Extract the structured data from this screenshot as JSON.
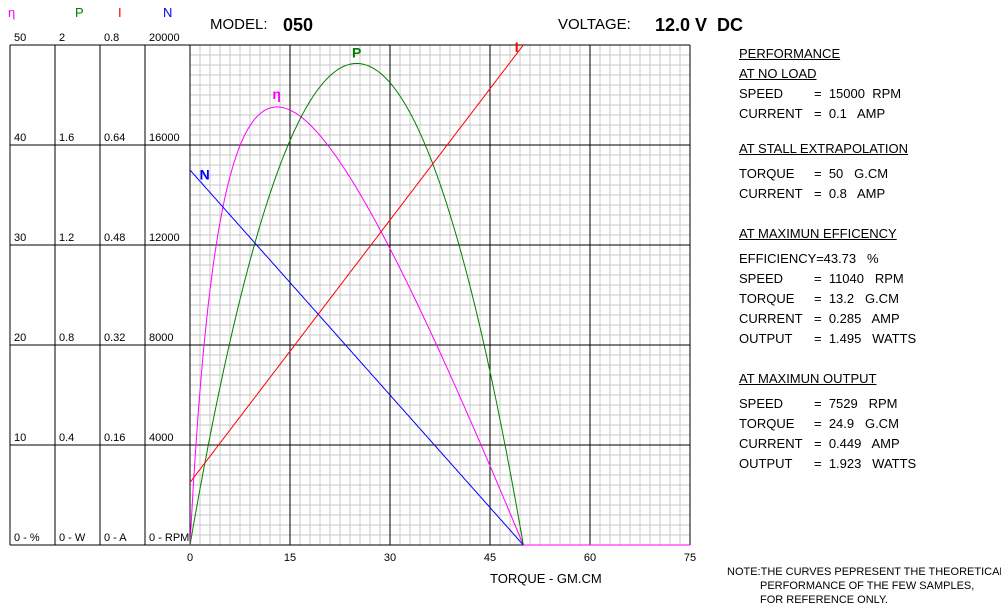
{
  "header": {
    "model_label": "MODEL:",
    "model_value": "050",
    "voltage_label": "VOLTAGE:",
    "voltage_value": "12.0 V  DC"
  },
  "axes": {
    "eff": {
      "symbol": "η",
      "color": "#ff00ff",
      "ticks": [
        "50",
        "40",
        "30",
        "20",
        "10",
        "0 - %"
      ]
    },
    "power": {
      "symbol": "P",
      "color": "#008000",
      "ticks": [
        "2",
        "1.6",
        "1.2",
        "0.8",
        "0.4",
        "0 - W"
      ]
    },
    "current": {
      "symbol": "I",
      "color": "#ff0000",
      "ticks": [
        "0.8",
        "0.64",
        "0.48",
        "0.32",
        "0.16",
        "0 - A"
      ]
    },
    "speed": {
      "symbol": "N",
      "color": "#0000ff",
      "ticks": [
        "20000",
        "16000",
        "12000",
        "8000",
        "4000",
        "0 - RPM"
      ]
    },
    "x_ticks": [
      "0",
      "15",
      "30",
      "45",
      "60",
      "75"
    ],
    "x_label": "TORQUE - GM.CM"
  },
  "performance": {
    "title": "PERFORMANCE",
    "no_load": {
      "title": "AT NO LOAD",
      "rows": [
        {
          "label": "SPEED",
          "value": "=  15000  RPM"
        },
        {
          "label": "CURRENT",
          "value": "=  0.1   AMP"
        }
      ]
    },
    "stall": {
      "title": "AT STALL EXTRAPOLATION",
      "rows": [
        {
          "label": "TORQUE",
          "value": "=  50   G.CM"
        },
        {
          "label": "CURRENT",
          "value": "=  0.8   AMP"
        }
      ]
    },
    "max_eff": {
      "title": "AT MAXIMUN EFFICENCY",
      "rows": [
        {
          "label": "EFFICIENCY=",
          "value": " 43.73   %"
        },
        {
          "label": "SPEED",
          "value": "=  11040   RPM"
        },
        {
          "label": "TORQUE",
          "value": "=  13.2   G.CM"
        },
        {
          "label": "CURRENT",
          "value": "=  0.285   AMP"
        },
        {
          "label": "OUTPUT",
          "value": "=  1.495   WATTS"
        }
      ]
    },
    "max_out": {
      "title": "AT MAXIMUN OUTPUT",
      "rows": [
        {
          "label": "SPEED",
          "value": "=  7529   RPM"
        },
        {
          "label": "TORQUE",
          "value": "=  24.9   G.CM"
        },
        {
          "label": "CURRENT",
          "value": "=  0.449   AMP"
        },
        {
          "label": "OUTPUT",
          "value": "=  1.923   WATTS"
        }
      ]
    }
  },
  "note": {
    "line1": "NOTE:THE CURVES PEPRESENT THE THEORETICAL",
    "line2": "PERFORMANCE OF THE FEW SAMPLES,",
    "line3": "FOR REFERENCE ONLY."
  },
  "chart_data": {
    "type": "line",
    "x": [
      0,
      50
    ],
    "xlabel": "TORQUE - GM.CM",
    "xlim": [
      0,
      75
    ],
    "grid": true,
    "stall_torque": 50,
    "no_load_speed": 15000,
    "no_load_current": 0.1,
    "stall_current": 0.8,
    "voltage": 12.0,
    "series": [
      {
        "name": "η",
        "unit": "%",
        "color": "#ff00ff",
        "ylim": [
          0,
          50
        ]
      },
      {
        "name": "P",
        "unit": "W",
        "color": "#008000",
        "ylim": [
          0,
          2
        ]
      },
      {
        "name": "I",
        "unit": "A",
        "color": "#ff0000",
        "ylim": [
          0,
          0.8
        ]
      },
      {
        "name": "N",
        "unit": "RPM",
        "color": "#0000ff",
        "ylim": [
          0,
          20000
        ]
      }
    ]
  }
}
